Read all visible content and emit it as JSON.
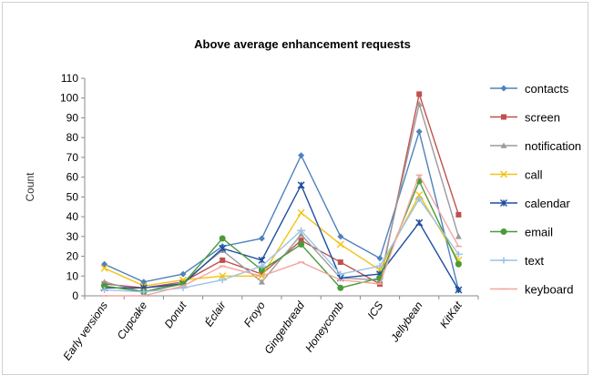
{
  "chart_data": {
    "type": "line",
    "title": "Above average enhancement requests",
    "xlabel": "",
    "ylabel": "Count",
    "categories": [
      "Early versions",
      "Cupcake",
      "Donut",
      "Éclair",
      "Froyo",
      "Gingerbread",
      "Honeycomb",
      "ICS",
      "Jellybean",
      "KitKat"
    ],
    "ylim": [
      0,
      110
    ],
    "yticks": [
      0,
      10,
      20,
      30,
      40,
      50,
      60,
      70,
      80,
      90,
      100,
      110
    ],
    "grid": false,
    "legend": "right",
    "series": [
      {
        "name": "contacts",
        "color": "#4f81bd",
        "marker": "diamond",
        "values": [
          16,
          7,
          11,
          25,
          29,
          71,
          30,
          19,
          83,
          3
        ]
      },
      {
        "name": "screen",
        "color": "#c0504d",
        "marker": "square",
        "values": [
          6,
          4,
          7,
          18,
          11,
          28,
          17,
          6,
          102,
          41
        ]
      },
      {
        "name": "notification",
        "color": "#9b9b9b",
        "marker": "triangle",
        "values": [
          7,
          2,
          7,
          23,
          7,
          31,
          9,
          8,
          97,
          30
        ]
      },
      {
        "name": "call",
        "color": "#f2c314",
        "marker": "x",
        "values": [
          14,
          5,
          8,
          10,
          10,
          42,
          26,
          13,
          51,
          18
        ]
      },
      {
        "name": "calendar",
        "color": "#1f4e9c",
        "marker": "star",
        "values": [
          4,
          4,
          6,
          24,
          18,
          56,
          9,
          11,
          37,
          3
        ]
      },
      {
        "name": "email",
        "color": "#4a9a3c",
        "marker": "circle",
        "values": [
          5,
          2,
          6,
          29,
          13,
          26,
          4,
          9,
          58,
          16
        ]
      },
      {
        "name": "text",
        "color": "#9dc3e6",
        "marker": "plus",
        "values": [
          3,
          2,
          4,
          8,
          15,
          33,
          11,
          15,
          49,
          21
        ]
      },
      {
        "name": "keyboard",
        "color": "#f4a6a0",
        "marker": "dash",
        "values": [
          0,
          0,
          5,
          15,
          10,
          17,
          8,
          6,
          61,
          25
        ]
      }
    ]
  }
}
